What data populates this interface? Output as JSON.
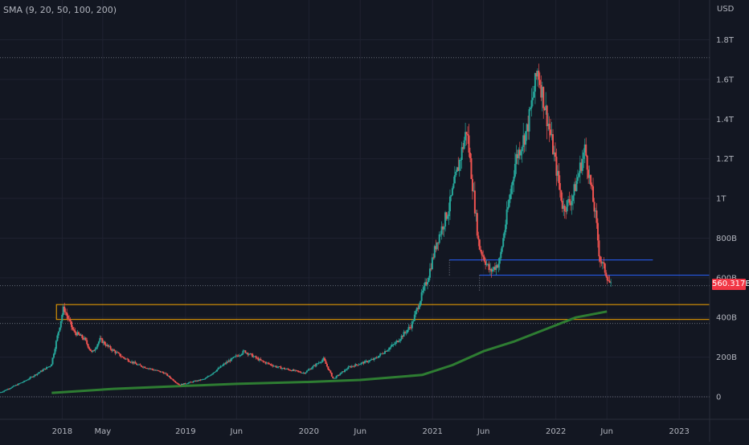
{
  "chart_data": {
    "type": "candlestick",
    "indicator_label": "SMA (9, 20, 50, 100, 200)",
    "currency": "USD",
    "y_axis_ticks": [
      "0",
      "200B",
      "400B",
      "600B",
      "800B",
      "1T",
      "1.2T",
      "1.4T",
      "1.6T",
      "1.8T"
    ],
    "y_tick_values": [
      0,
      200,
      400,
      600,
      800,
      1000,
      1200,
      1400,
      1600,
      1800
    ],
    "y_unit": "billions USD",
    "x_axis_ticks": [
      "2018",
      "May",
      "2019",
      "Jun",
      "2020",
      "Jun",
      "2021",
      "Jun",
      "2022",
      "Jun",
      "2023"
    ],
    "x_tick_dates": [
      "2018-01-01",
      "2018-05-01",
      "2019-01-01",
      "2019-06-01",
      "2020-01-01",
      "2020-06-01",
      "2021-01-01",
      "2021-06-01",
      "2022-01-01",
      "2022-06-01",
      "2023-01-01"
    ],
    "x_range": [
      "2017-07-01",
      "2023-04-01"
    ],
    "current_price_label": "560.317B",
    "current_price": 560.3,
    "resistance_lines": [
      {
        "value": 690,
        "start": "2021-02-20",
        "end": "2022-10-15",
        "color": "#2962ff"
      },
      {
        "value": 613,
        "start": "2021-05-20",
        "end": "2023-04-01",
        "color": "#2962ff"
      }
    ],
    "support_zone": {
      "low": 390,
      "high": 465,
      "start": "2017-12-15",
      "end": "2023-04-01",
      "border_color": "#f7a600"
    },
    "horizontal_dotted_lines": [
      1710,
      560.3,
      370,
      0
    ],
    "sma_200": {
      "color": "#2e7d32",
      "dates": [
        "2017-12-01",
        "2018-06-01",
        "2019-01-01",
        "2019-06-01",
        "2020-01-01",
        "2020-06-01",
        "2020-12-01",
        "2021-03-01",
        "2021-06-01",
        "2021-09-01",
        "2021-12-01",
        "2022-03-01",
        "2022-06-01"
      ],
      "values": [
        20,
        40,
        55,
        65,
        75,
        85,
        110,
        160,
        230,
        280,
        340,
        400,
        430
      ]
    },
    "price_path": {
      "dates": [
        "2017-07-01",
        "2017-09-15",
        "2017-12-01",
        "2018-01-07",
        "2018-02-05",
        "2018-03-10",
        "2018-04-01",
        "2018-04-25",
        "2018-05-20",
        "2018-06-30",
        "2018-08-15",
        "2018-11-01",
        "2018-12-15",
        "2019-03-01",
        "2019-05-01",
        "2019-06-26",
        "2019-08-15",
        "2019-10-01",
        "2019-12-20",
        "2020-02-15",
        "2020-03-15",
        "2020-05-01",
        "2020-07-15",
        "2020-09-15",
        "2020-11-01",
        "2020-12-20",
        "2021-01-15",
        "2021-02-20",
        "2021-04-14",
        "2021-05-20",
        "2021-06-22",
        "2021-07-20",
        "2021-09-06",
        "2021-10-10",
        "2021-11-10",
        "2021-12-20",
        "2022-01-24",
        "2022-02-20",
        "2022-03-30",
        "2022-05-01",
        "2022-05-12",
        "2022-05-25",
        "2022-06-14"
      ],
      "values": [
        20,
        80,
        160,
        450,
        330,
        290,
        220,
        290,
        250,
        200,
        160,
        120,
        60,
        90,
        170,
        230,
        180,
        150,
        120,
        190,
        90,
        150,
        190,
        270,
        360,
        600,
        780,
        950,
        1350,
        760,
        630,
        680,
        1200,
        1350,
        1650,
        1300,
        950,
        1000,
        1250,
        900,
        700,
        650,
        560
      ]
    }
  }
}
